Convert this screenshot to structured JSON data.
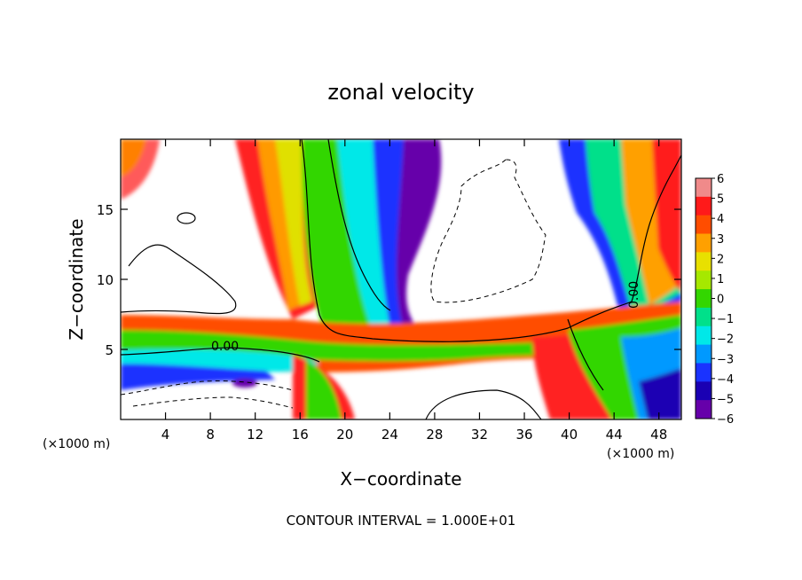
{
  "chart_data": {
    "type": "heatmap",
    "title": "zonal velocity",
    "xlabel": "X−coordinate",
    "ylabel": "Z−coordinate",
    "x_unit_label": "(×1000 m)",
    "x_unit_label_right": "(×1000 m)",
    "xlim": [
      0,
      50
    ],
    "ylim": [
      0,
      20
    ],
    "x_ticks": [
      4,
      8,
      12,
      16,
      20,
      24,
      28,
      32,
      36,
      40,
      44,
      48
    ],
    "y_ticks": [
      5,
      10,
      15
    ],
    "colorbar": {
      "levels": [
        6,
        5,
        4,
        3,
        2,
        1,
        0,
        -1,
        -2,
        -3,
        -4,
        -5,
        -6
      ],
      "labels": [
        "6",
        "5",
        "4",
        "3",
        "2",
        "1",
        "0",
        "−1",
        "−2",
        "−3",
        "−4",
        "−5",
        "−6"
      ],
      "colors": [
        "#f08a8a",
        "#ff1a1a",
        "#ff4d00",
        "#ffa000",
        "#e8e000",
        "#a6e800",
        "#33d600",
        "#00e08a",
        "#00e8e8",
        "#0099ff",
        "#1a33ff",
        "#1a00b3",
        "#6600aa"
      ]
    },
    "contour_labels": [
      "0.00",
      "0.00"
    ],
    "footer": "CONTOUR INTERVAL = 1.000E+01",
    "grid": false
  }
}
